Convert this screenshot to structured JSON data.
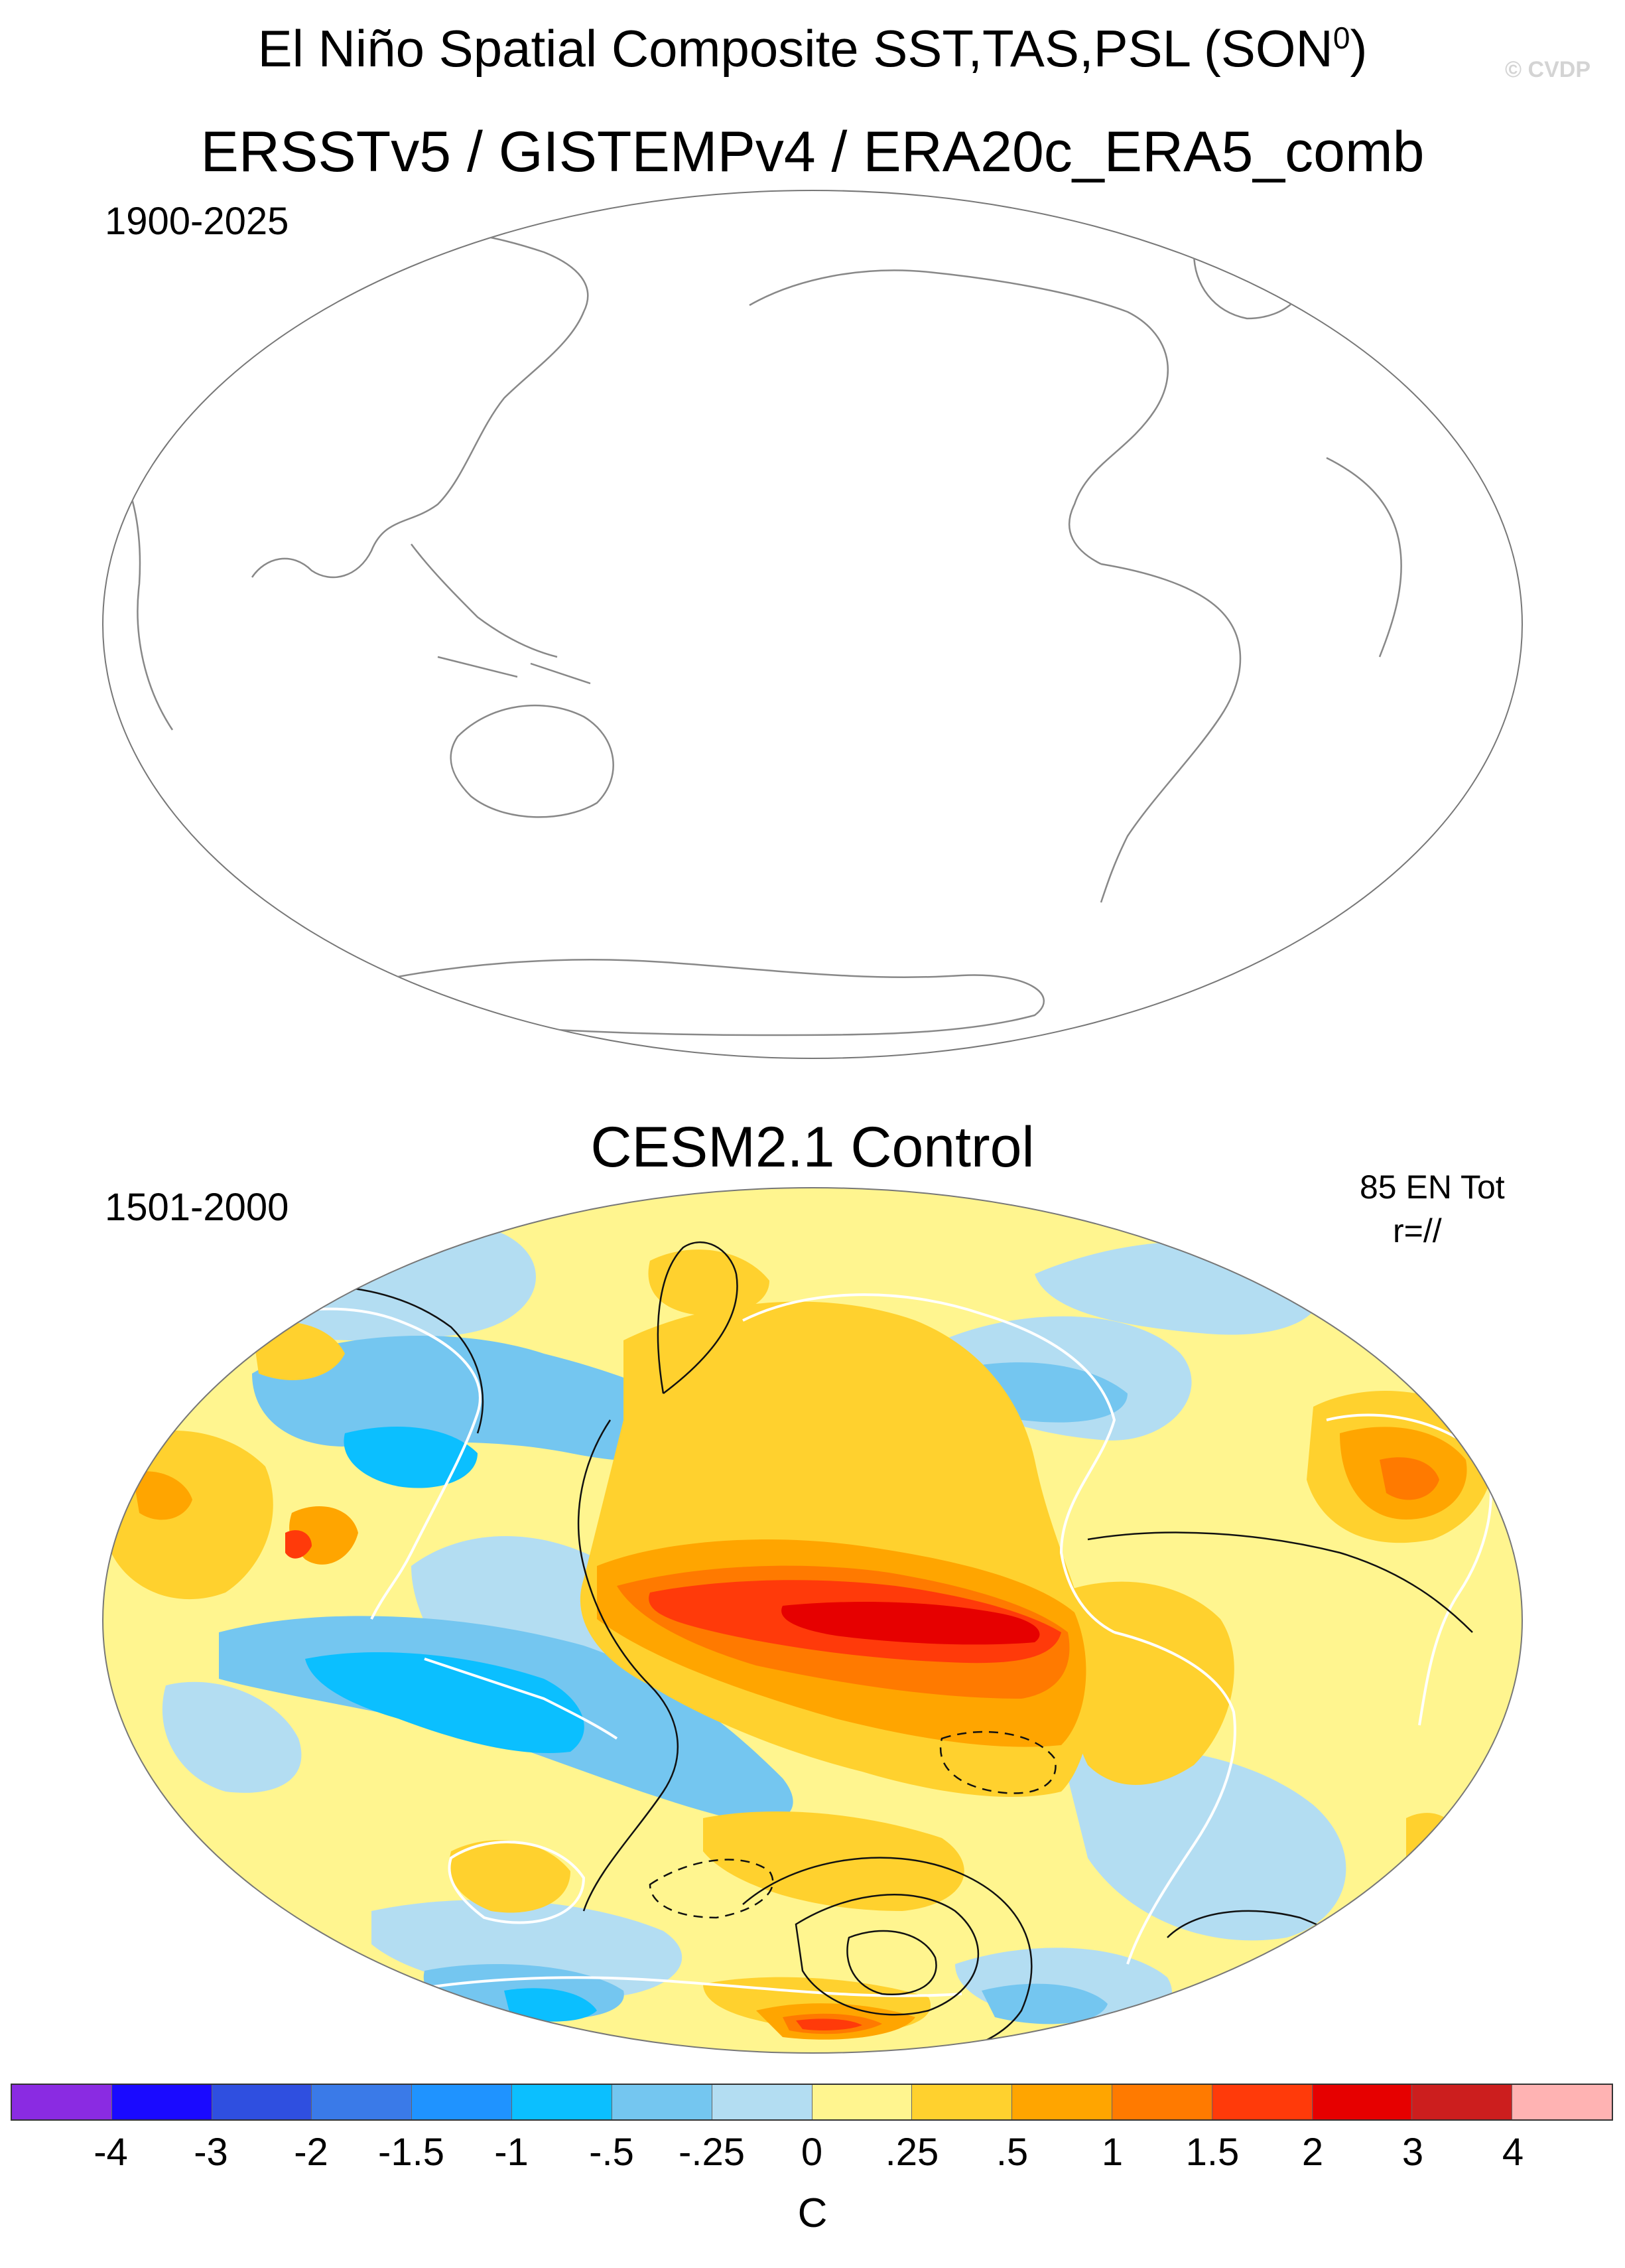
{
  "header": {
    "title": "El Niño Spatial Composite SST,TAS,PSL (SON",
    "title_superscript": "0",
    "title_suffix": ")",
    "watermark": "© CVDP"
  },
  "panels": [
    {
      "title": "ERSSTv5 / GISTEMPv4 / ERA20c_ERA5_comb",
      "period": "1900-2025",
      "annotation_lines": [],
      "filled": false
    },
    {
      "title": "CESM2.1 Control",
      "period": "1501-2000",
      "annotation_lines": [
        "85 EN Tot",
        "r=//"
      ],
      "filled": true
    }
  ],
  "colorbar": {
    "colors": [
      "#8a2be2",
      "#1a0aff",
      "#2f4fe0",
      "#3a7ae8",
      "#1f93ff",
      "#0bbfff",
      "#74c6f0",
      "#b3ddf2",
      "#fff58f",
      "#ffd12e",
      "#ffa500",
      "#ff7a00",
      "#ff3a0a",
      "#e60000",
      "#cc1e1e",
      "#ffb3b3"
    ],
    "labels": [
      "-4",
      "-3",
      "-2",
      "-1.5",
      "-1",
      "-.5",
      "-.25",
      "0",
      ".25",
      ".5",
      "1",
      "1.5",
      "2",
      "3",
      "4"
    ],
    "unit": "C"
  }
}
